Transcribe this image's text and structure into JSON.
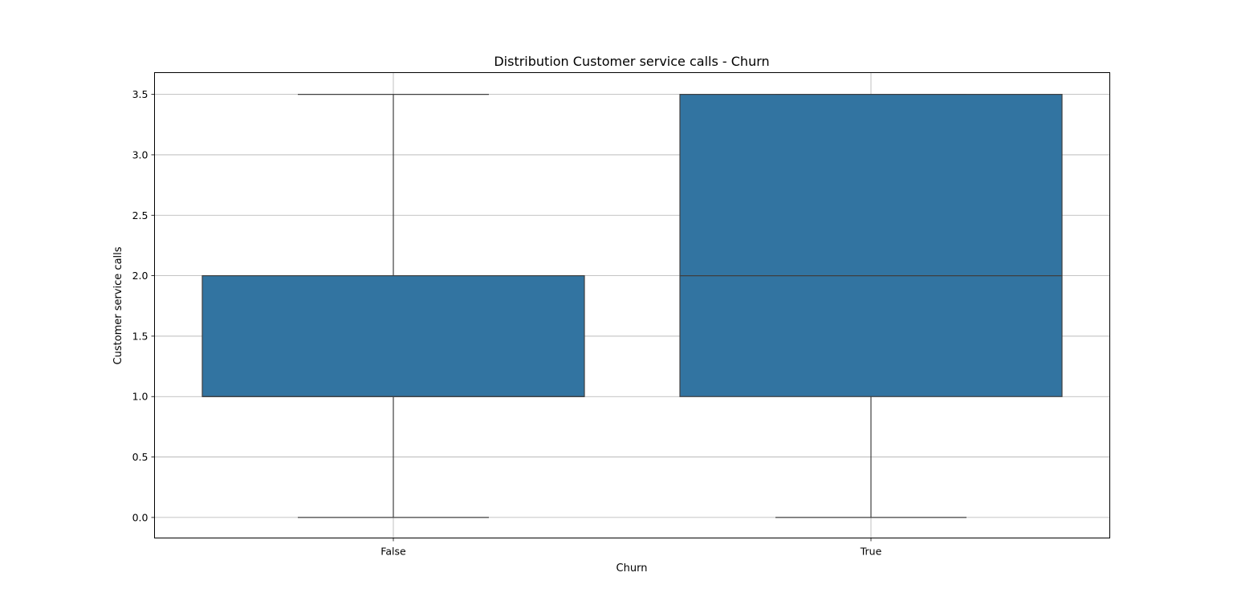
{
  "chart_data": {
    "type": "box",
    "title": "Distribution Customer service calls - Churn",
    "xlabel": "Churn",
    "ylabel": "Customer service calls",
    "ylim": [
      -0.17,
      3.68
    ],
    "yticks": [
      "0.0",
      "0.5",
      "1.0",
      "1.5",
      "2.0",
      "2.5",
      "3.0",
      "3.5"
    ],
    "grid": true,
    "box_color": "#3274a1",
    "edge_color": "#3f3f3f",
    "grid_color": "#b0b0b0",
    "categories": [
      "False",
      "True"
    ],
    "boxes": [
      {
        "category": "False",
        "whisker_low": 0.0,
        "q1": 1.0,
        "median": 1.0,
        "q3": 2.0,
        "whisker_high": 3.5
      },
      {
        "category": "True",
        "whisker_low": 0.0,
        "q1": 1.0,
        "median": 2.0,
        "q3": 3.5,
        "whisker_high": 3.5
      }
    ]
  }
}
